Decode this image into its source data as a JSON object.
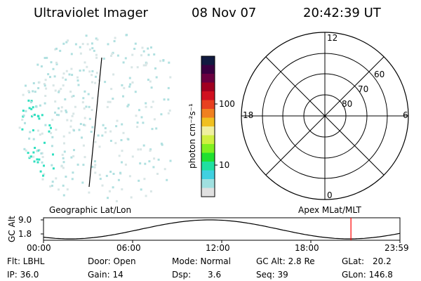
{
  "header": {
    "instrument": "Ultraviolet Imager",
    "date": "08 Nov 07",
    "time": "20:42:39 UT"
  },
  "colorbar": {
    "label": "photon cm⁻²s⁻¹",
    "tick_labels": [
      "100",
      "10"
    ],
    "scale": "log",
    "colors": [
      "#111a40",
      "#3a0040",
      "#6a0040",
      "#a00020",
      "#d01020",
      "#e84020",
      "#f08020",
      "#f0c020",
      "#f0f0a0",
      "#d0f040",
      "#80f020",
      "#20e030",
      "#20e0a0",
      "#40d0e0",
      "#a0e0e0",
      "#e0e0e0"
    ]
  },
  "polar": {
    "mlt_labels": {
      "top": "12",
      "left": "18",
      "right": "6",
      "bottom": "0"
    },
    "lat_labels": [
      "60",
      "70",
      "80"
    ]
  },
  "orbit": {
    "left_label": "Geographic Lat/Lon",
    "right_label": "Apex MLat/MLT",
    "yaxis_label": "GC Alt",
    "y_ticks": [
      "9.0",
      "1.8"
    ],
    "x_ticks": [
      "00:00",
      "06:00",
      "12:00",
      "18:00",
      "23:59"
    ],
    "marker_time_hours": 20.7,
    "marker_color": "#ff0000"
  },
  "status": {
    "filter": "Flt: LBHL",
    "ip": "IP: 36.0",
    "door": "Door: Open",
    "gain": "Gain: 14",
    "mode": "Mode: Normal",
    "dsp_label": "Dsp:",
    "dsp_value": "3.6",
    "gc_alt": "GC Alt: 2.8 Re",
    "seq": "Seq: 39",
    "glat_label": "GLat:",
    "glat_value": "20.2",
    "glon": "GLon: 146.8"
  }
}
